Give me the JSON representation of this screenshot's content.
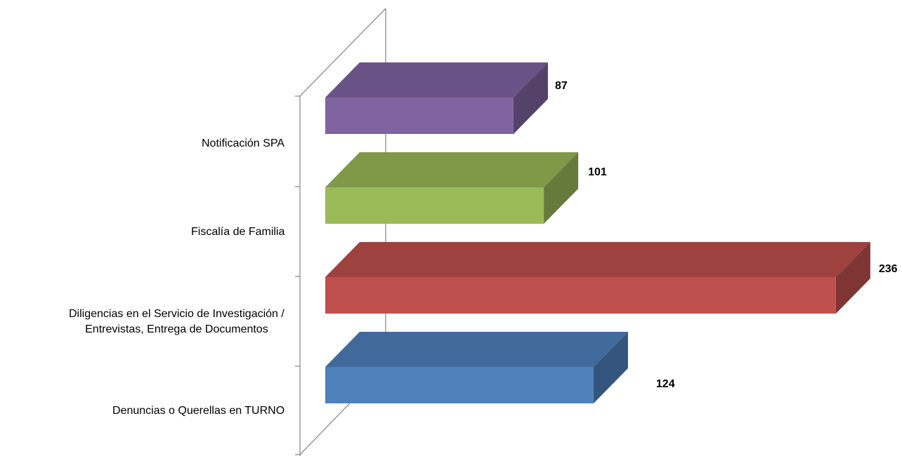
{
  "chart_data": {
    "type": "bar",
    "orientation": "horizontal",
    "style": "3d",
    "categories": [
      "Notificación SPA",
      "Fiscalía de Familia",
      "Diligencias en el Servicio de Investigación / Entrevistas, Entrega de Documentos",
      "Denuncias o Querellas en TURNO"
    ],
    "category_lines": [
      [
        "Notificación SPA"
      ],
      [
        "Fiscalía de Familia"
      ],
      [
        "Diligencias en el Servicio de Investigación /",
        "Entrevistas, Entrega de Documentos"
      ],
      [
        "Denuncias o Querellas en TURNO"
      ]
    ],
    "values": [
      87,
      101,
      236,
      124
    ],
    "value_labels": [
      "87",
      "101",
      "236",
      "124"
    ],
    "colors": [
      "#8064A2",
      "#9BBB59",
      "#C0504D",
      "#4F81BD"
    ],
    "xlim": [
      0,
      236
    ],
    "title": "",
    "xlabel": "",
    "ylabel": "",
    "grid": false,
    "legend": "none"
  }
}
